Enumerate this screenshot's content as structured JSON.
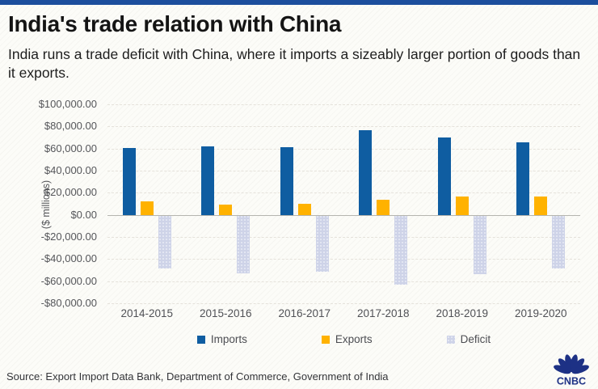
{
  "page": {
    "accent_bar_color": "#1c4e9d",
    "background_color": "#fcfcf8"
  },
  "header": {
    "title": "India's trade relation with China",
    "subtitle": "India runs a trade deficit with China, where it imports a sizeably larger portion of goods than it exports."
  },
  "chart_data": {
    "type": "bar",
    "title": "India's trade relation with China",
    "xlabel": "",
    "ylabel": "($ millions)",
    "ylim": [
      -80000,
      100000
    ],
    "ytick_step": 20000,
    "ytick_labels": [
      "$100,000.00",
      "$80,000.00",
      "$60,000.00",
      "$40,000.00",
      "$20,000.00",
      "$0.00",
      "-$20,000.00",
      "-$40,000.00",
      "-$60,000.00",
      "-$80,000.00"
    ],
    "categories": [
      "2014-2015",
      "2015-2016",
      "2016-2017",
      "2017-2018",
      "2018-2019",
      "2019-2020"
    ],
    "series": [
      {
        "name": "Imports",
        "color": "#0f5da1",
        "values": [
          60413,
          61708,
          61283,
          76381,
          70320,
          65261
        ]
      },
      {
        "name": "Exports",
        "color": "#ffb200",
        "values": [
          11934,
          9011,
          10171,
          13334,
          16752,
          16613
        ]
      },
      {
        "name": "Deficit",
        "color": "#ced3e8",
        "texture": "dots",
        "values": [
          -48479,
          -52697,
          -51112,
          -63047,
          -53567,
          -48648
        ]
      }
    ],
    "grid": true,
    "legend_position": "bottom",
    "gridline_color": "#e5e2db",
    "zero_line_color": "#b5b5af"
  },
  "footer": {
    "source": "Source: Export Import Data Bank, Department of Commerce, Government of India",
    "logo_text": "CNBC",
    "logo_color": "#1d3185"
  }
}
